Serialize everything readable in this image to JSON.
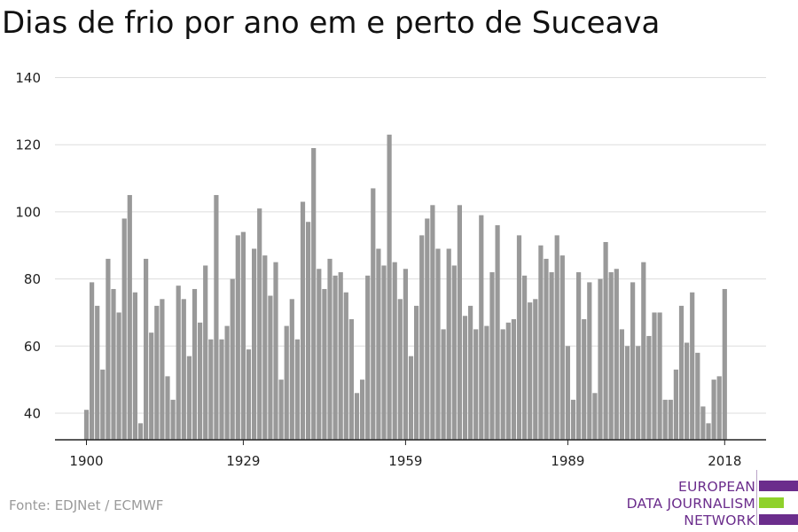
{
  "title": "Dias de frio por ano em e perto de Suceava",
  "source": "Fonte: EDJNet / ECMWF",
  "logo": {
    "lines": [
      "EUROPEAN",
      "DATA JOURNALISM",
      "NETWORK"
    ],
    "colors": {
      "text": "#6b2d8c",
      "bar_primary": "#6b2d8c",
      "bar_accent": "#8fd12b"
    }
  },
  "colors": {
    "bar": "#999999",
    "grid": "#dddddd",
    "axis": "#222222",
    "tick_label": "#222222"
  },
  "chart_data": {
    "type": "bar",
    "title": "Dias de frio por ano em e perto de Suceava",
    "xlabel": "",
    "ylabel": "",
    "ylim": [
      30,
      140
    ],
    "yticks": [
      40,
      60,
      80,
      100,
      120,
      140
    ],
    "xticks": [
      1900,
      1929,
      1959,
      1989,
      2018
    ],
    "grid": true,
    "years": [
      1900,
      1901,
      1902,
      1903,
      1904,
      1905,
      1906,
      1907,
      1908,
      1909,
      1910,
      1911,
      1912,
      1913,
      1914,
      1915,
      1916,
      1917,
      1918,
      1919,
      1920,
      1921,
      1922,
      1923,
      1924,
      1925,
      1926,
      1927,
      1928,
      1929,
      1930,
      1931,
      1932,
      1933,
      1934,
      1935,
      1936,
      1937,
      1938,
      1939,
      1940,
      1941,
      1942,
      1943,
      1944,
      1945,
      1946,
      1947,
      1948,
      1949,
      1950,
      1951,
      1952,
      1953,
      1954,
      1955,
      1956,
      1957,
      1958,
      1959,
      1960,
      1961,
      1962,
      1963,
      1964,
      1965,
      1966,
      1967,
      1968,
      1969,
      1970,
      1971,
      1972,
      1973,
      1974,
      1975,
      1976,
      1977,
      1978,
      1979,
      1980,
      1981,
      1982,
      1983,
      1984,
      1985,
      1986,
      1987,
      1988,
      1989,
      1990,
      1991,
      1992,
      1993,
      1994,
      1995,
      1996,
      1997,
      1998,
      1999,
      2000,
      2001,
      2002,
      2003,
      2004,
      2005,
      2006,
      2007,
      2008,
      2009,
      2010,
      2011,
      2012,
      2013,
      2014,
      2015,
      2016,
      2017,
      2018
    ],
    "values": [
      41,
      79,
      72,
      53,
      86,
      77,
      70,
      98,
      105,
      76,
      37,
      86,
      64,
      72,
      74,
      51,
      44,
      78,
      74,
      57,
      77,
      67,
      84,
      62,
      105,
      62,
      66,
      80,
      93,
      94,
      59,
      89,
      101,
      87,
      75,
      85,
      50,
      66,
      74,
      62,
      103,
      97,
      119,
      83,
      77,
      86,
      81,
      82,
      76,
      68,
      46,
      50,
      81,
      107,
      89,
      84,
      123,
      85,
      74,
      83,
      57,
      72,
      93,
      98,
      102,
      89,
      65,
      89,
      84,
      102,
      69,
      72,
      65,
      99,
      66,
      82,
      96,
      65,
      67,
      68,
      93,
      81,
      73,
      74,
      90,
      86,
      82,
      93,
      87,
      60,
      44,
      82,
      68,
      79,
      46,
      80,
      91,
      82,
      83,
      65,
      60,
      79,
      60,
      85,
      63,
      70,
      70,
      44,
      44,
      53,
      72,
      61,
      76,
      58,
      42,
      37,
      50,
      51,
      77
    ]
  }
}
